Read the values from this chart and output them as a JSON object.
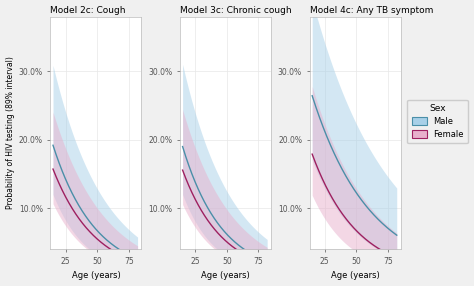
{
  "titles": [
    "Model 2c: Cough",
    "Model 3c: Chronic cough",
    "Model 4c: Any TB symptom"
  ],
  "ylabel": "Probability of HIV testing (89% interval)",
  "xlabel": "Age (years)",
  "yticks": [
    0.1,
    0.2,
    0.3
  ],
  "ytick_labels": [
    "10.0%",
    "20.0%",
    "30.0%"
  ],
  "xticks": [
    25,
    50,
    75
  ],
  "ylim": [
    0.04,
    0.38
  ],
  "xlim": [
    13,
    85
  ],
  "legend_title": "Sex",
  "male_color": "#a8d0e8",
  "male_line_color": "#4a8fa8",
  "female_color": "#e8b0cc",
  "female_line_color": "#9e2060",
  "background_color": "#f0f0f0",
  "panel_background": "#ffffff",
  "grid_color": "#e8e8e8",
  "panels": [
    {
      "male_a": -1.2,
      "male_b": -0.03,
      "male_ci_upper_a": -0.8,
      "male_ci_upper_b": -0.025,
      "male_ci_lower_a": -1.55,
      "male_ci_lower_b": -0.038,
      "female_a": -1.4,
      "female_b": -0.03,
      "female_ci_upper_a": -1.05,
      "female_ci_upper_b": -0.025,
      "female_ci_lower_a": -1.7,
      "female_ci_lower_b": -0.036
    },
    {
      "male_a": -1.18,
      "male_b": -0.032,
      "male_ci_upper_a": -0.78,
      "male_ci_upper_b": -0.026,
      "male_ci_lower_a": -1.52,
      "male_ci_lower_b": -0.04,
      "female_a": -1.38,
      "female_b": -0.032,
      "female_ci_upper_a": -1.02,
      "female_ci_upper_b": -0.026,
      "female_ci_lower_a": -1.68,
      "female_ci_lower_b": -0.038
    },
    {
      "male_a": -1.0,
      "male_b": -0.022,
      "male_ci_upper_a": -0.65,
      "male_ci_upper_b": -0.017,
      "male_ci_lower_a": -1.35,
      "male_ci_lower_b": -0.028,
      "female_a": -1.3,
      "female_b": -0.028,
      "female_ci_upper_a": -0.95,
      "female_ci_upper_b": -0.022,
      "female_ci_lower_a": -1.62,
      "female_ci_lower_b": -0.034
    }
  ]
}
